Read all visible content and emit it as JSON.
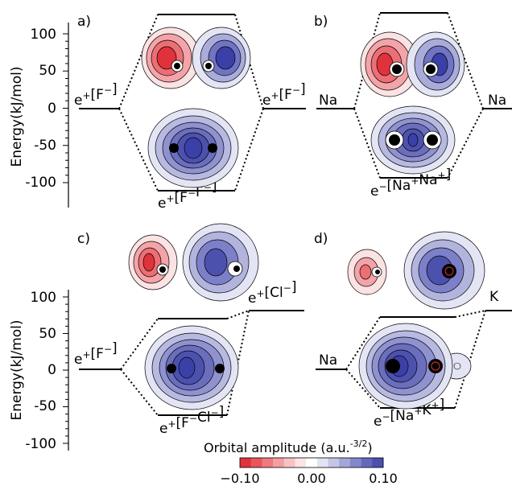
{
  "panels": [
    {
      "letter": "a)",
      "left_label": "e+[F−]",
      "right_label": "e+[F−]",
      "bottom_label": "e+[F−F−]"
    },
    {
      "letter": "b)",
      "left_label": "Na",
      "right_label": "Na",
      "bottom_label": "e−[Na+Na+]"
    },
    {
      "letter": "c)",
      "left_label": "e+[F−]",
      "right_label": "e+[Cl−]",
      "bottom_label": "e+[F−Cl−]"
    },
    {
      "letter": "d)",
      "left_label": "Na",
      "right_label": "K",
      "bottom_label": "e−[Na+K+]"
    }
  ],
  "axes": [
    {
      "ylabel": "Energy(kJ/mol)",
      "ticks": [
        "100",
        "50",
        "0",
        "-50",
        "-100"
      ]
    },
    {
      "ylabel": "Energy(kJ/mol)",
      "ticks": [
        "100",
        "50",
        "0",
        "-50",
        "-100"
      ]
    }
  ],
  "colorbar": {
    "title": "Orbital amplitude (a.u.",
    "exponent": "-3/2",
    "title_close": ")",
    "ticks": [
      "−0.10",
      "0.00",
      "0.10"
    ],
    "colors": [
      "#e0323b",
      "#e8555d",
      "#ef797f",
      "#f49ea2",
      "#f8c2c4",
      "#fce4e5",
      "#ffffff",
      "#e3e3f3",
      "#c4c5e6",
      "#a3a6d8",
      "#8387cb",
      "#6569be",
      "#4a4fb0"
    ]
  },
  "text": {
    "a_left": "e+[F−]",
    "a_right": "e+[F−]",
    "a_bottom": "e+[F−F−]",
    "b_left": "Na",
    "b_right": "Na",
    "b_bottom": "e−[Na+Na+]",
    "c_left": "e+[F−]",
    "c_right": "e+[Cl−]",
    "c_bottom": "e+[F−Cl−]",
    "d_left": "Na",
    "d_right": "K",
    "d_bottom": "e−[Na+K+]"
  }
}
